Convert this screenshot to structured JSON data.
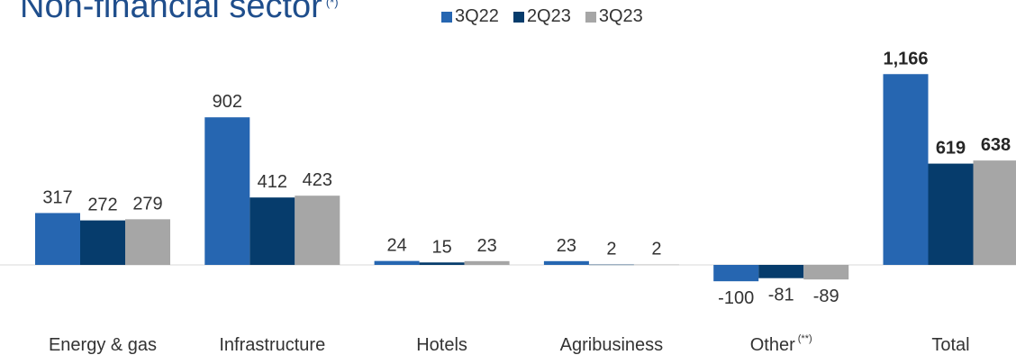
{
  "title": "Non-financial sector",
  "title_sup": "(*)",
  "category_note": "(**)",
  "colors": {
    "3Q22": "#2666b1",
    "2Q23": "#063c6c",
    "3Q23": "#a6a6a6"
  },
  "chart_data": {
    "type": "bar",
    "title": "Non-financial sector",
    "categories": [
      "Energy & gas",
      "Infrastructure",
      "Hotels",
      "Agribusiness",
      "Other",
      "Total"
    ],
    "series": [
      {
        "name": "3Q22",
        "values": [
          317,
          902,
          24,
          23,
          -100,
          1166
        ]
      },
      {
        "name": "2Q23",
        "values": [
          272,
          412,
          15,
          2,
          -81,
          619
        ]
      },
      {
        "name": "3Q23",
        "values": [
          279,
          423,
          23,
          2,
          -89,
          638
        ]
      }
    ],
    "data_labels": [
      [
        "317",
        "902",
        "24",
        "23",
        "-100",
        "1,166"
      ],
      [
        "272",
        "412",
        "15",
        "2",
        "-81",
        "619"
      ],
      [
        "279",
        "423",
        "23",
        "2",
        "-89",
        "638"
      ]
    ],
    "bold_categories": [
      "Total"
    ],
    "legend_position": "top",
    "grid": false,
    "xlabel": "",
    "ylabel": ""
  }
}
